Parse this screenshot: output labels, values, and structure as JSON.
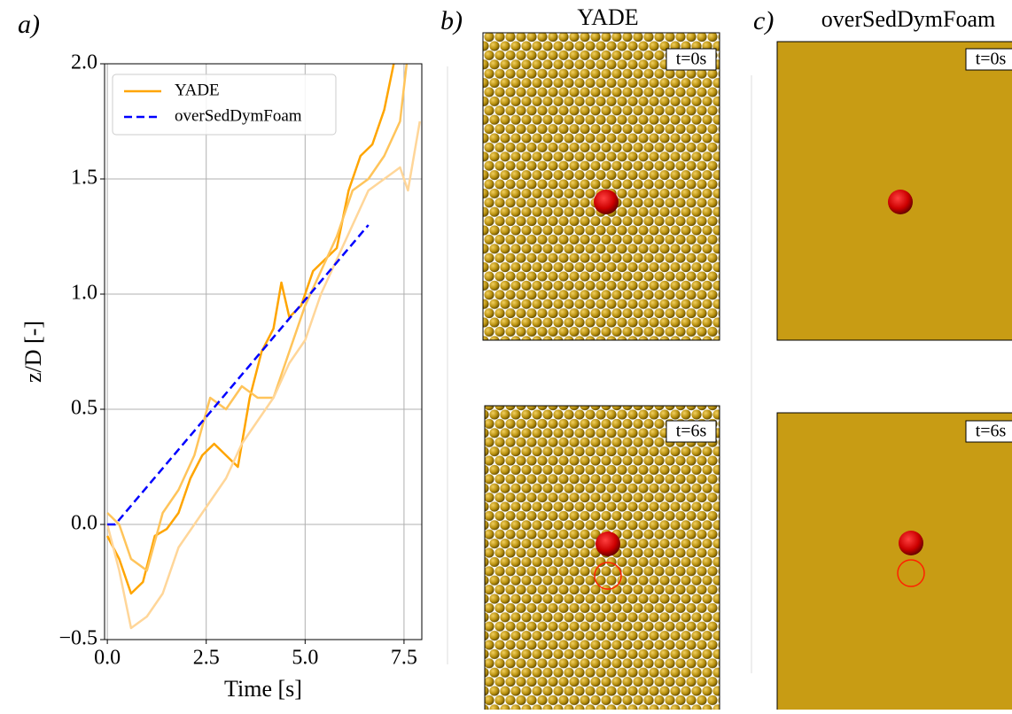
{
  "chart_data": {
    "type": "line",
    "panel_label": "a)",
    "xlabel": "Time [s]",
    "ylabel": "z/D [-]",
    "xlim": [
      -0.07,
      7.95
    ],
    "ylim": [
      -0.5,
      2.0
    ],
    "xticks": [
      {
        "value": 0,
        "label": "0.0"
      },
      2.5,
      {
        "value": 5,
        "label": "5.0"
      },
      7.5
    ],
    "yticks": [
      {
        "value": -0.5,
        "label": "−0.5"
      },
      {
        "value": 0,
        "label": "0.0"
      },
      0.5,
      {
        "value": 1,
        "label": "1.0"
      },
      1.5,
      {
        "value": 2,
        "label": "2.0"
      }
    ],
    "grid": true,
    "legend": "upper left",
    "series": [
      {
        "name": "YADE",
        "color": "#FFA500",
        "x": [
          0,
          0.3,
          0.6,
          0.9,
          1.2,
          1.5,
          1.8,
          2.1,
          2.4,
          2.7,
          3.0,
          3.3,
          3.6,
          3.9,
          4.2,
          4.4,
          4.6,
          4.9,
          5.2,
          5.5,
          5.8,
          6.1,
          6.4,
          6.7,
          7.0,
          7.3
        ],
        "values": [
          -0.05,
          -0.15,
          -0.3,
          -0.25,
          -0.05,
          -0.02,
          0.05,
          0.2,
          0.3,
          0.35,
          0.3,
          0.25,
          0.55,
          0.75,
          0.85,
          1.05,
          0.9,
          0.95,
          1.1,
          1.15,
          1.2,
          1.45,
          1.6,
          1.65,
          1.8,
          2.05
        ]
      },
      {
        "color": "#FFC45A",
        "x": [
          0,
          0.3,
          0.6,
          1.0,
          1.4,
          1.8,
          2.2,
          2.6,
          3.0,
          3.4,
          3.8,
          4.2,
          4.6,
          5.0,
          5.4,
          5.8,
          6.2,
          6.6,
          7.0,
          7.4,
          7.6
        ],
        "values": [
          0.05,
          0.0,
          -0.15,
          -0.2,
          0.05,
          0.15,
          0.3,
          0.55,
          0.5,
          0.6,
          0.55,
          0.55,
          0.75,
          0.95,
          1.1,
          1.25,
          1.45,
          1.5,
          1.6,
          1.75,
          2.05
        ]
      },
      {
        "color": "#FFD699",
        "x": [
          0,
          0.3,
          0.6,
          1.0,
          1.4,
          1.8,
          2.2,
          2.6,
          3.0,
          3.4,
          3.8,
          4.2,
          4.6,
          5.0,
          5.4,
          5.8,
          6.2,
          6.6,
          7.0,
          7.4,
          7.6,
          7.9
        ],
        "values": [
          0.0,
          -0.2,
          -0.45,
          -0.4,
          -0.3,
          -0.1,
          0.0,
          0.1,
          0.2,
          0.35,
          0.45,
          0.55,
          0.7,
          0.8,
          1.0,
          1.15,
          1.3,
          1.45,
          1.5,
          1.55,
          1.45,
          1.75
        ]
      },
      {
        "name": "overSedDymFoam",
        "color": "#0000FF",
        "dashed": true,
        "x": [
          0,
          0.2,
          6.6
        ],
        "values": [
          0,
          0,
          1.3
        ]
      }
    ]
  },
  "panels": [
    {
      "label": "b)",
      "title": "YADE",
      "snapshots": [
        "t=0s",
        "t=6s"
      ]
    },
    {
      "label": "c)",
      "title": "overSedDymFoam",
      "snapshots": [
        "t=0s",
        "t=6s"
      ]
    }
  ]
}
